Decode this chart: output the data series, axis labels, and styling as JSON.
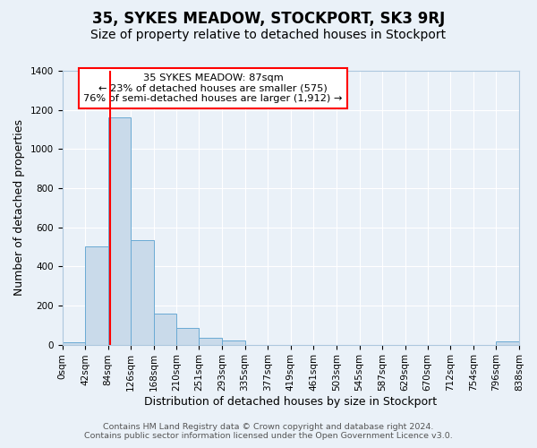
{
  "title": "35, SYKES MEADOW, STOCKPORT, SK3 9RJ",
  "subtitle": "Size of property relative to detached houses in Stockport",
  "xlabel": "Distribution of detached houses by size in Stockport",
  "ylabel": "Number of detached properties",
  "bin_edges": [
    0,
    42,
    84,
    126,
    168,
    210,
    251,
    293,
    335,
    377,
    419,
    461,
    503,
    545,
    587,
    629,
    670,
    712,
    754,
    796,
    838
  ],
  "bin_heights": [
    10,
    500,
    1160,
    535,
    160,
    85,
    35,
    20,
    0,
    0,
    0,
    0,
    0,
    0,
    0,
    0,
    0,
    0,
    0,
    15
  ],
  "bar_color": "#c9daea",
  "bar_edge_color": "#6aaad4",
  "marker_x": 87,
  "marker_color": "red",
  "annotation_title": "35 SYKES MEADOW: 87sqm",
  "annotation_line1": "← 23% of detached houses are smaller (575)",
  "annotation_line2": "76% of semi-detached houses are larger (1,912) →",
  "annotation_box_color": "white",
  "annotation_box_edge": "red",
  "ylim": [
    0,
    1400
  ],
  "xlim": [
    0,
    838
  ],
  "yticks": [
    0,
    200,
    400,
    600,
    800,
    1000,
    1200,
    1400
  ],
  "xtick_labels": [
    "0sqm",
    "42sqm",
    "84sqm",
    "126sqm",
    "168sqm",
    "210sqm",
    "251sqm",
    "293sqm",
    "335sqm",
    "377sqm",
    "419sqm",
    "461sqm",
    "503sqm",
    "545sqm",
    "587sqm",
    "629sqm",
    "670sqm",
    "712sqm",
    "754sqm",
    "796sqm",
    "838sqm"
  ],
  "footer1": "Contains HM Land Registry data © Crown copyright and database right 2024.",
  "footer2": "Contains public sector information licensed under the Open Government Licence v3.0.",
  "background_color": "#eaf1f8",
  "plot_background": "#eaf1f8",
  "grid_color": "white",
  "title_fontsize": 12,
  "subtitle_fontsize": 10,
  "label_fontsize": 9,
  "tick_fontsize": 7.5,
  "footer_fontsize": 6.8
}
